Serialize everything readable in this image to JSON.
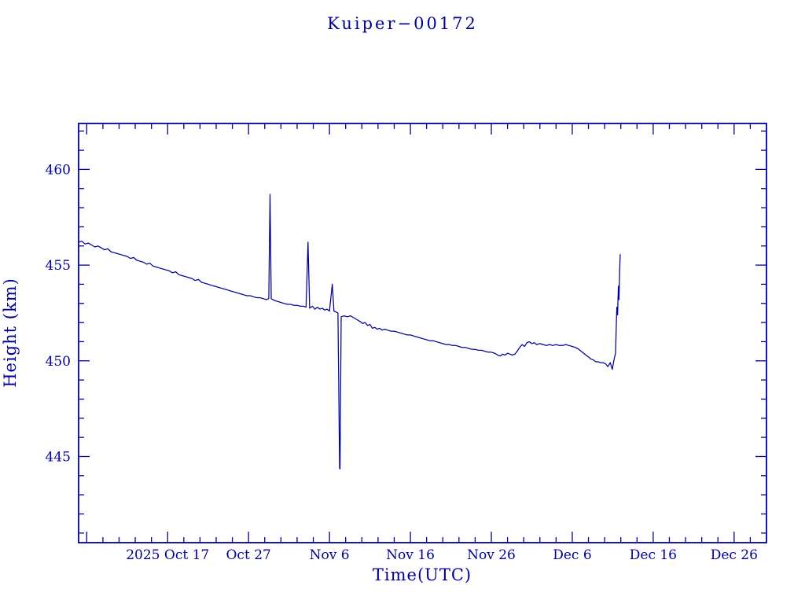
{
  "colors": {
    "ink": "#000099",
    "background": "#ffffff"
  },
  "chart_data": {
    "type": "line",
    "title": "Kuiper−00172",
    "xlabel": "Time(UTC)",
    "ylabel": "Height (km)",
    "x_unit": "days since 2025-10-06 (plot left edge)",
    "xlim": [
      0,
      85
    ],
    "ylim": [
      440.5,
      462.4
    ],
    "x_ticks": [
      11,
      21,
      31,
      41,
      51,
      61,
      71,
      81
    ],
    "x_tick_labels": [
      "2025 Oct 17",
      "Oct 27",
      "Nov 6",
      "Nov 16",
      "Nov 26",
      "Dec 6",
      "Dec 16",
      "Dec 26"
    ],
    "x_minor_step": 2,
    "y_ticks": [
      445,
      450,
      455,
      460
    ],
    "y_tick_labels": [
      "445",
      "450",
      "455",
      "460"
    ],
    "y_minor_step": 1,
    "grid": false,
    "legend": null,
    "series": [
      {
        "name": "height_km",
        "points": [
          [
            0,
            456.2
          ],
          [
            0.4,
            456.25
          ],
          [
            0.8,
            456.1
          ],
          [
            1.2,
            456.15
          ],
          [
            1.6,
            456.05
          ],
          [
            2,
            455.95
          ],
          [
            2.4,
            456.0
          ],
          [
            2.8,
            455.9
          ],
          [
            3.2,
            455.8
          ],
          [
            3.6,
            455.85
          ],
          [
            4,
            455.7
          ],
          [
            4.4,
            455.65
          ],
          [
            4.8,
            455.6
          ],
          [
            5.2,
            455.55
          ],
          [
            5.6,
            455.5
          ],
          [
            6,
            455.45
          ],
          [
            6.4,
            455.35
          ],
          [
            6.8,
            455.4
          ],
          [
            7.2,
            455.25
          ],
          [
            7.6,
            455.2
          ],
          [
            8,
            455.15
          ],
          [
            8.4,
            455.05
          ],
          [
            8.8,
            455.1
          ],
          [
            9.2,
            454.95
          ],
          [
            9.6,
            454.9
          ],
          [
            10,
            454.85
          ],
          [
            10.4,
            454.8
          ],
          [
            10.8,
            454.75
          ],
          [
            11.2,
            454.7
          ],
          [
            11.6,
            454.6
          ],
          [
            12,
            454.65
          ],
          [
            12.4,
            454.5
          ],
          [
            12.8,
            454.45
          ],
          [
            13.2,
            454.4
          ],
          [
            13.6,
            454.35
          ],
          [
            14,
            454.3
          ],
          [
            14.4,
            454.2
          ],
          [
            14.8,
            454.25
          ],
          [
            15.2,
            454.1
          ],
          [
            15.6,
            454.05
          ],
          [
            16,
            454.0
          ],
          [
            16.4,
            453.95
          ],
          [
            16.8,
            453.9
          ],
          [
            17.2,
            453.85
          ],
          [
            17.6,
            453.8
          ],
          [
            18,
            453.75
          ],
          [
            18.4,
            453.7
          ],
          [
            18.8,
            453.65
          ],
          [
            19.2,
            453.6
          ],
          [
            19.6,
            453.55
          ],
          [
            20,
            453.5
          ],
          [
            20.4,
            453.45
          ],
          [
            20.8,
            453.4
          ],
          [
            21.2,
            453.4
          ],
          [
            21.6,
            453.35
          ],
          [
            22,
            453.3
          ],
          [
            22.4,
            453.3
          ],
          [
            22.8,
            453.25
          ],
          [
            23.2,
            453.2
          ],
          [
            23.5,
            453.25
          ],
          [
            23.65,
            458.7
          ],
          [
            23.8,
            453.25
          ],
          [
            24.2,
            453.15
          ],
          [
            24.6,
            453.1
          ],
          [
            25,
            453.05
          ],
          [
            25.4,
            453.0
          ],
          [
            25.8,
            452.95
          ],
          [
            26.2,
            452.95
          ],
          [
            26.6,
            452.9
          ],
          [
            27,
            452.9
          ],
          [
            27.4,
            452.85
          ],
          [
            27.8,
            452.85
          ],
          [
            28.1,
            452.8
          ],
          [
            28.35,
            456.2
          ],
          [
            28.55,
            452.75
          ],
          [
            28.9,
            452.85
          ],
          [
            29.2,
            452.7
          ],
          [
            29.5,
            452.8
          ],
          [
            29.8,
            452.7
          ],
          [
            30.1,
            452.75
          ],
          [
            30.4,
            452.65
          ],
          [
            30.7,
            452.7
          ],
          [
            31,
            452.6
          ],
          [
            31.35,
            454.0
          ],
          [
            31.55,
            452.6
          ],
          [
            31.8,
            452.55
          ],
          [
            32.05,
            452.5
          ],
          [
            32.25,
            444.4
          ],
          [
            32.3,
            444.35
          ],
          [
            32.45,
            452.3
          ],
          [
            32.8,
            452.35
          ],
          [
            33.2,
            452.3
          ],
          [
            33.6,
            452.35
          ],
          [
            34,
            452.25
          ],
          [
            34.4,
            452.15
          ],
          [
            34.8,
            452.05
          ],
          [
            35.1,
            451.95
          ],
          [
            35.4,
            452.0
          ],
          [
            35.7,
            451.85
          ],
          [
            36,
            451.9
          ],
          [
            36.3,
            451.7
          ],
          [
            36.6,
            451.75
          ],
          [
            36.9,
            451.65
          ],
          [
            37.2,
            451.7
          ],
          [
            37.5,
            451.6
          ],
          [
            37.8,
            451.65
          ],
          [
            38.2,
            451.6
          ],
          [
            38.6,
            451.55
          ],
          [
            39,
            451.55
          ],
          [
            39.4,
            451.5
          ],
          [
            39.8,
            451.45
          ],
          [
            40.2,
            451.4
          ],
          [
            40.6,
            451.35
          ],
          [
            41,
            451.35
          ],
          [
            41.4,
            451.3
          ],
          [
            41.8,
            451.25
          ],
          [
            42.2,
            451.2
          ],
          [
            42.6,
            451.15
          ],
          [
            43,
            451.1
          ],
          [
            43.4,
            451.05
          ],
          [
            43.8,
            451.05
          ],
          [
            44.2,
            451.0
          ],
          [
            44.6,
            450.95
          ],
          [
            45,
            450.9
          ],
          [
            45.4,
            450.85
          ],
          [
            45.8,
            450.85
          ],
          [
            46.2,
            450.8
          ],
          [
            46.6,
            450.8
          ],
          [
            47,
            450.75
          ],
          [
            47.4,
            450.7
          ],
          [
            47.8,
            450.7
          ],
          [
            48.2,
            450.65
          ],
          [
            48.6,
            450.6
          ],
          [
            49,
            450.6
          ],
          [
            49.4,
            450.55
          ],
          [
            49.8,
            450.55
          ],
          [
            50.2,
            450.5
          ],
          [
            50.6,
            450.45
          ],
          [
            51,
            450.45
          ],
          [
            51.4,
            450.4
          ],
          [
            51.8,
            450.3
          ],
          [
            52.1,
            450.25
          ],
          [
            52.4,
            450.35
          ],
          [
            52.7,
            450.3
          ],
          [
            53,
            450.4
          ],
          [
            53.3,
            450.35
          ],
          [
            53.6,
            450.3
          ],
          [
            53.9,
            450.35
          ],
          [
            54.2,
            450.5
          ],
          [
            54.5,
            450.7
          ],
          [
            54.8,
            450.85
          ],
          [
            55.1,
            450.75
          ],
          [
            55.4,
            450.95
          ],
          [
            55.7,
            451.0
          ],
          [
            56,
            450.9
          ],
          [
            56.3,
            450.95
          ],
          [
            56.6,
            450.85
          ],
          [
            57,
            450.9
          ],
          [
            57.4,
            450.85
          ],
          [
            57.8,
            450.8
          ],
          [
            58.2,
            450.85
          ],
          [
            58.6,
            450.8
          ],
          [
            59,
            450.85
          ],
          [
            59.4,
            450.8
          ],
          [
            59.8,
            450.8
          ],
          [
            60.2,
            450.85
          ],
          [
            60.6,
            450.8
          ],
          [
            61,
            450.75
          ],
          [
            61.4,
            450.7
          ],
          [
            61.8,
            450.6
          ],
          [
            62.1,
            450.5
          ],
          [
            62.4,
            450.4
          ],
          [
            62.7,
            450.3
          ],
          [
            63,
            450.2
          ],
          [
            63.3,
            450.1
          ],
          [
            63.6,
            450.05
          ],
          [
            63.9,
            449.95
          ],
          [
            64.2,
            449.95
          ],
          [
            64.5,
            449.9
          ],
          [
            64.8,
            449.9
          ],
          [
            65.1,
            449.85
          ],
          [
            65.4,
            449.7
          ],
          [
            65.7,
            449.9
          ],
          [
            65.95,
            449.55
          ],
          [
            66.15,
            450.05
          ],
          [
            66.35,
            450.4
          ],
          [
            66.5,
            452.8
          ],
          [
            66.6,
            452.4
          ],
          [
            66.7,
            453.9
          ],
          [
            66.78,
            453.2
          ],
          [
            66.85,
            454.6
          ],
          [
            66.92,
            455.55
          ]
        ]
      }
    ]
  }
}
